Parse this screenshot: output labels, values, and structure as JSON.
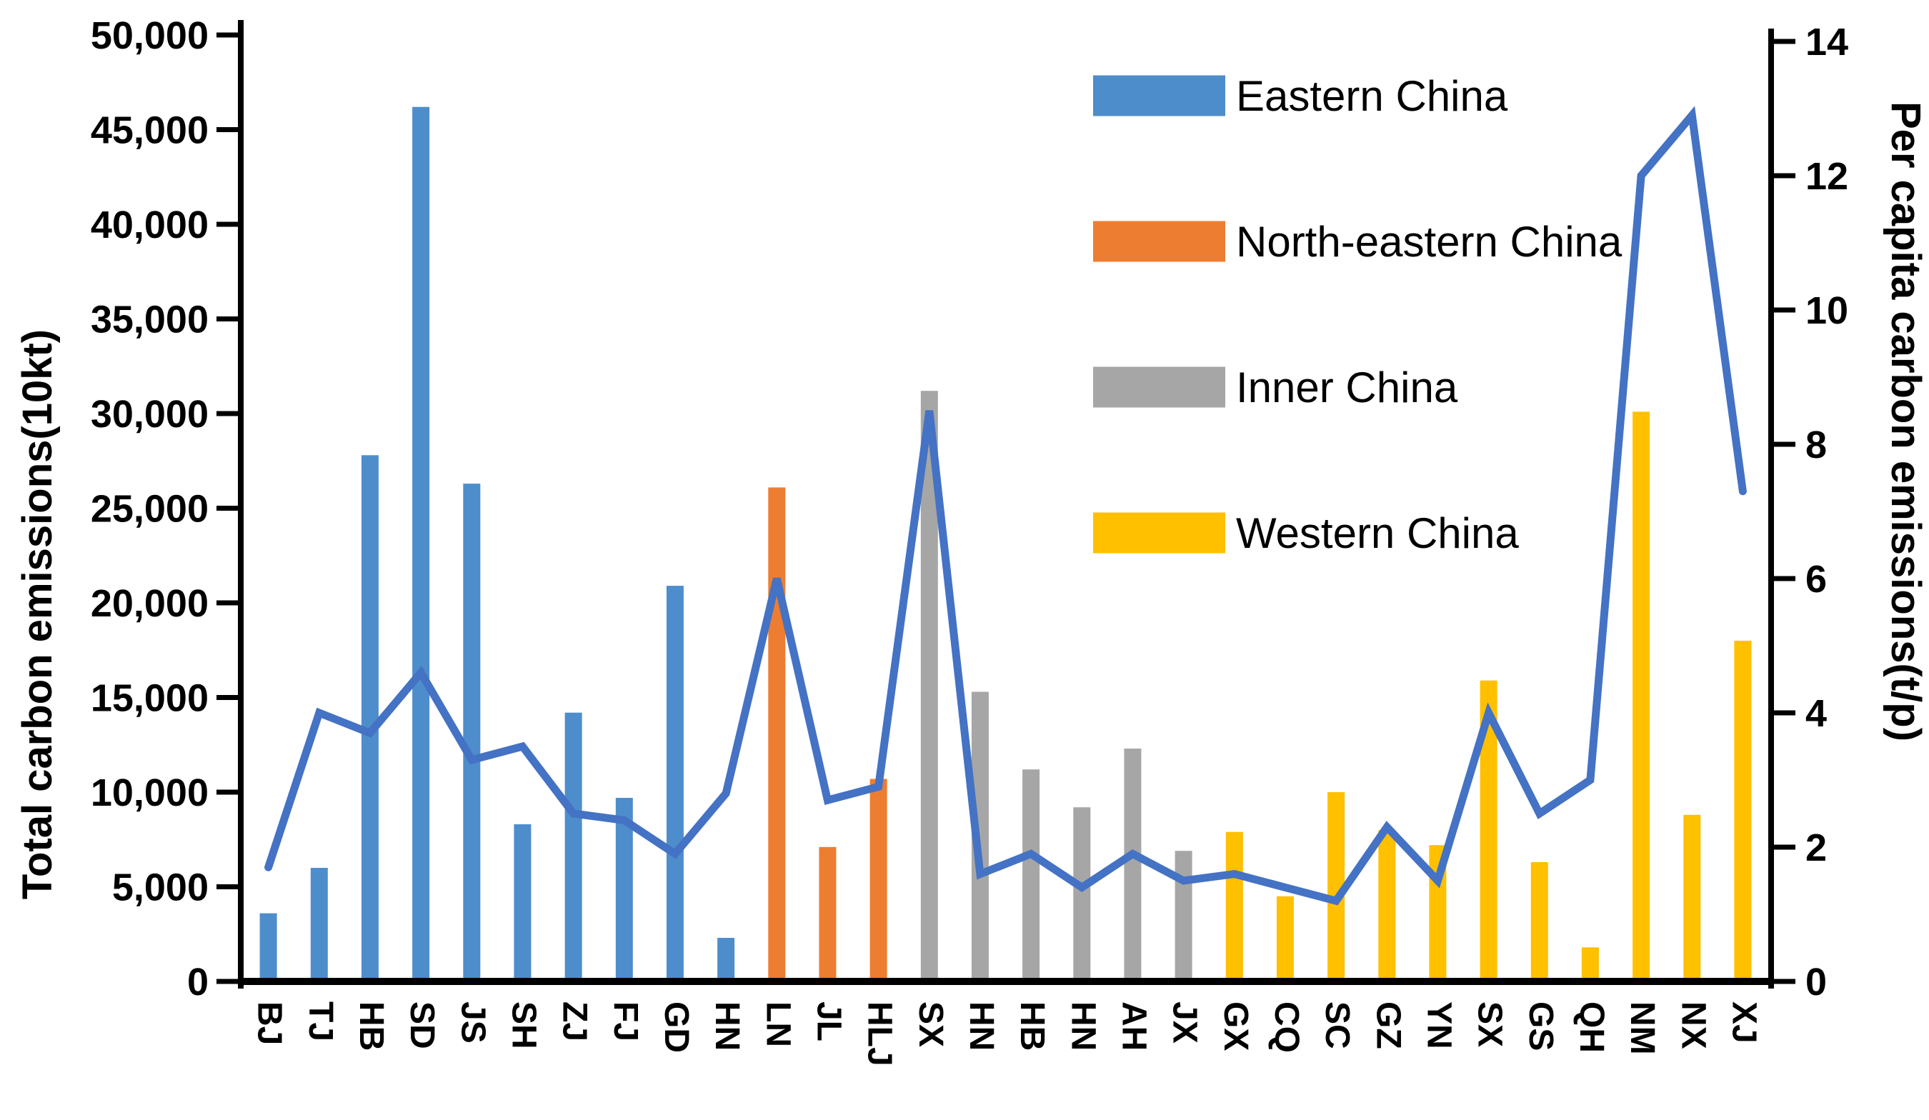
{
  "chart_data": {
    "type": "bar",
    "combo": "bar+line",
    "title": "",
    "categories": [
      "BJ",
      "TJ",
      "HB",
      "SD",
      "JS",
      "SH",
      "ZJ",
      "FJ",
      "GD",
      "HN",
      "LN",
      "JL",
      "HLJ",
      "SX",
      "HN",
      "HB",
      "HN",
      "AH",
      "JX",
      "GX",
      "CQ",
      "SC",
      "GZ",
      "YN",
      "SX",
      "GS",
      "QH",
      "NM",
      "NX",
      "XJ"
    ],
    "regions": [
      "Eastern China",
      "Eastern China",
      "Eastern China",
      "Eastern China",
      "Eastern China",
      "Eastern China",
      "Eastern China",
      "Eastern China",
      "Eastern China",
      "Eastern China",
      "North-eastern China",
      "North-eastern China",
      "North-eastern China",
      "Inner China",
      "Inner China",
      "Inner China",
      "Inner China",
      "Inner China",
      "Inner China",
      "Western China",
      "Western China",
      "Western China",
      "Western China",
      "Western China",
      "Western China",
      "Western China",
      "Western China",
      "Western China",
      "Western China",
      "Western China"
    ],
    "series": [
      {
        "name": "Total carbon emissions",
        "type": "bar",
        "axis": "left",
        "values": [
          3600,
          6000,
          27800,
          46200,
          26300,
          8300,
          14200,
          9700,
          20900,
          2300,
          26100,
          7100,
          10700,
          31200,
          15300,
          11200,
          9200,
          12300,
          6900,
          7900,
          4500,
          10000,
          8000,
          7200,
          15900,
          6300,
          1800,
          30100,
          8800,
          18000
        ]
      },
      {
        "name": "Per capita carbon emissions",
        "type": "line",
        "axis": "right",
        "color": "#4472C4",
        "values": [
          1.7,
          4.0,
          3.7,
          4.6,
          3.3,
          3.5,
          2.5,
          2.4,
          1.9,
          2.8,
          6.0,
          2.7,
          2.9,
          8.5,
          1.6,
          1.9,
          1.4,
          1.9,
          1.5,
          1.6,
          1.4,
          1.2,
          2.3,
          1.5,
          4.0,
          2.5,
          3.0,
          12.0,
          12.9,
          7.3
        ]
      }
    ],
    "legend": [
      {
        "label": "Eastern China",
        "color": "#4E8DCB"
      },
      {
        "label": "North-eastern China",
        "color": "#ED7D31"
      },
      {
        "label": "Inner China",
        "color": "#A6A6A6"
      },
      {
        "label": "Western China",
        "color": "#FFC000"
      }
    ],
    "legend_position": "top-right",
    "grid": false,
    "left_axis": {
      "label": "Total carbon emissions(10kt)",
      "min": 0,
      "max": 50000,
      "step": 5000,
      "tick_labels": [
        "0",
        "5,000",
        "10,000",
        "15,000",
        "20,000",
        "25,000",
        "30,000",
        "35,000",
        "40,000",
        "45,000",
        "50,000"
      ]
    },
    "right_axis": {
      "label": "Per capita carbon emissions(t/p)",
      "min": 0,
      "max": 14,
      "step": 2,
      "tick_labels": [
        "0",
        "2",
        "4",
        "6",
        "8",
        "10",
        "12",
        "14"
      ]
    },
    "axis_color": "#000000",
    "line_color": "#4472C4"
  }
}
